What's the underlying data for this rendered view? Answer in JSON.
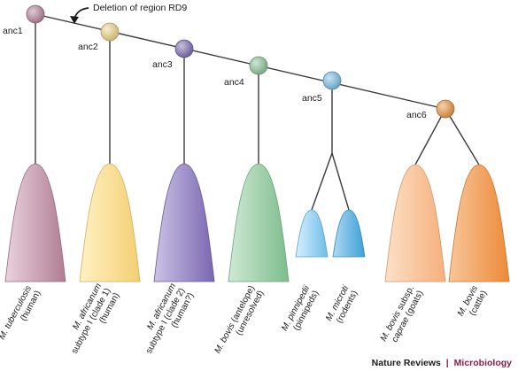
{
  "annotation": {
    "text": "Deletion of region RD9"
  },
  "ancestors": [
    {
      "id": "anc1",
      "label": "anc1",
      "color": "#b98aa0"
    },
    {
      "id": "anc2",
      "label": "anc2",
      "color": "#f4d98e"
    },
    {
      "id": "anc3",
      "label": "anc3",
      "color": "#8272b8"
    },
    {
      "id": "anc4",
      "label": "anc4",
      "color": "#93c99d"
    },
    {
      "id": "anc5",
      "label": "anc5",
      "color": "#7ec4ea"
    },
    {
      "id": "anc6",
      "label": "anc6",
      "color": "#f09a45"
    }
  ],
  "taxa": [
    {
      "id": "tuberculosis",
      "lines": [
        [
          "M. tuberculosis"
        ],
        [
          "(human)"
        ]
      ],
      "italic_first": true,
      "color_light": "#ead2dc",
      "color_dark": "#b07d93"
    },
    {
      "id": "africanum1",
      "lines": [
        [
          "M. africanum"
        ],
        [
          "subtype I (clade 1)"
        ],
        [
          "(human)"
        ]
      ],
      "italic_first": true,
      "color_light": "#fff1c4",
      "color_dark": "#f3cf72"
    },
    {
      "id": "africanum2",
      "lines": [
        [
          "M. africanum"
        ],
        [
          "subtype I (clade 2)"
        ],
        [
          "(human?)"
        ]
      ],
      "italic_first": true,
      "color_light": "#cbc3e6",
      "color_dark": "#7a66b0"
    },
    {
      "id": "bovis_antelope",
      "lines": [
        [
          "M. bovis",
          " (antelope)"
        ],
        [
          "(unresolved)"
        ]
      ],
      "italic_first": true,
      "color_light": "#cfe9d4",
      "color_dark": "#7dbd8d"
    },
    {
      "id": "pinnipedii",
      "lines": [
        [
          "M. pinnipedii"
        ],
        [
          "(pinnipeds)"
        ]
      ],
      "italic_first": true,
      "color_light": "#d6efff",
      "color_dark": "#6fbde8"
    },
    {
      "id": "microti",
      "lines": [
        [
          "M. microti"
        ],
        [
          "(rodents)"
        ]
      ],
      "italic_first": true,
      "color_light": "#aedaf3",
      "color_dark": "#3d9fd6"
    },
    {
      "id": "caprae",
      "lines": [
        [
          "M. bovis",
          " subsp."
        ],
        [
          "caprae",
          " (goats)"
        ]
      ],
      "italic_first": true,
      "italic_second_first": true,
      "color_light": "#fde0c6",
      "color_dark": "#f5b07c"
    },
    {
      "id": "bovis_cattle",
      "lines": [
        [
          "M. bovis"
        ],
        [
          "(cattle)"
        ]
      ],
      "italic_first": true,
      "color_light": "#f8c69a",
      "color_dark": "#ec8a38"
    }
  ],
  "credit": {
    "journal": "Nature Reviews",
    "separator": "|",
    "section": "Microbiology",
    "journal_color": "#1a1a1a",
    "section_color": "#8a1e4a"
  }
}
